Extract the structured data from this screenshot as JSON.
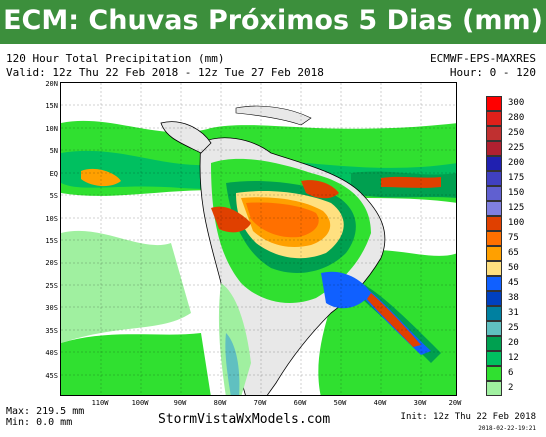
{
  "banner": {
    "title": "ECM: Chuvas Próximos 5 Dias (mm)"
  },
  "header": {
    "line1_left": "120 Hour Total Precipitation (mm)",
    "line1_right": "ECMWF-EPS-MAXRES",
    "line2_left": "Valid: 12z Thu 22 Feb 2018 - 12z Tue 27 Feb 2018",
    "line2_right": "Hour: 0 - 120"
  },
  "map": {
    "lat_labels": [
      "20N",
      "15N",
      "10N",
      "5N",
      "EQ",
      "5S",
      "10S",
      "15S",
      "20S",
      "25S",
      "30S",
      "35S",
      "40S",
      "45S"
    ],
    "lon_labels": [
      "110W",
      "100W",
      "90W",
      "80W",
      "70W",
      "60W",
      "50W",
      "40W",
      "30W",
      "20W"
    ],
    "ocean_color": "#ffffff",
    "land_color": "#e8e8e8"
  },
  "legend": {
    "levels": [
      "300",
      "280",
      "250",
      "225",
      "200",
      "175",
      "150",
      "125",
      "100",
      "75",
      "65",
      "50",
      "45",
      "38",
      "31",
      "25",
      "20",
      "12",
      "6",
      "2"
    ],
    "colors": [
      "#ff0000",
      "#e0201a",
      "#c03030",
      "#b02030",
      "#2020b0",
      "#4040c0",
      "#6060d0",
      "#8080e0",
      "#e04000",
      "#ff7000",
      "#ffa000",
      "#ffe080",
      "#1060ff",
      "#0040c0",
      "#0080a0",
      "#60c0c0",
      "#00a050",
      "#00c060",
      "#30e030",
      "#a0f0a0"
    ]
  },
  "footer": {
    "max": "Max: 219.5 mm",
    "min": "Min: 0.0 mm",
    "site": "StormVistaWxModels.com",
    "init": "Init: 12z Thu 22 Feb 2018",
    "stamp": "2018-02-22-19:21"
  }
}
